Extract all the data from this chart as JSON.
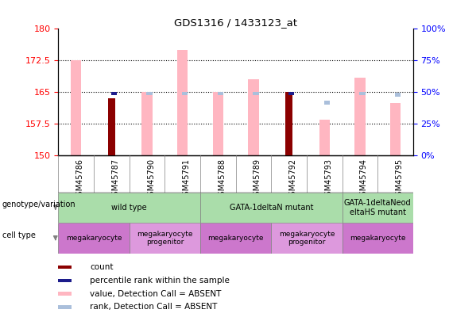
{
  "title": "GDS1316 / 1433123_at",
  "samples": [
    "GSM45786",
    "GSM45787",
    "GSM45790",
    "GSM45791",
    "GSM45788",
    "GSM45789",
    "GSM45792",
    "GSM45793",
    "GSM45794",
    "GSM45795"
  ],
  "ylim_left": [
    150,
    180
  ],
  "ylim_right": [
    0,
    100
  ],
  "yticks_left": [
    150,
    157.5,
    165,
    172.5,
    180
  ],
  "yticks_right": [
    0,
    25,
    50,
    75,
    100
  ],
  "value_absent": [
    172.5,
    null,
    165.0,
    175.0,
    165.0,
    168.0,
    null,
    158.5,
    168.5,
    162.5
  ],
  "rank_absent_pct": [
    null,
    null,
    49,
    49,
    49,
    49,
    null,
    42,
    49,
    48
  ],
  "count_value": [
    null,
    163.5,
    null,
    null,
    null,
    null,
    165.0,
    null,
    null,
    null
  ],
  "percentile_pct": [
    null,
    49,
    null,
    null,
    null,
    null,
    49,
    null,
    null,
    null
  ],
  "color_count": "#8B0000",
  "color_percentile": "#1C1C8B",
  "color_value_absent": "#FFB6C1",
  "color_rank_absent": "#AABFDB",
  "genotype_groups": [
    {
      "label": "wild type",
      "start": 0,
      "end": 4,
      "color": "#AADDAA"
    },
    {
      "label": "GATA-1deltaN mutant",
      "start": 4,
      "end": 8,
      "color": "#AADDAA"
    },
    {
      "label": "GATA-1deltaNeod\neltaHS mutant",
      "start": 8,
      "end": 10,
      "color": "#AADDAA"
    }
  ],
  "cell_type_groups": [
    {
      "label": "megakaryocyte",
      "start": 0,
      "end": 2,
      "color": "#CC77CC"
    },
    {
      "label": "megakaryocyte\nprogenitor",
      "start": 2,
      "end": 4,
      "color": "#DD99DD"
    },
    {
      "label": "megakaryocyte",
      "start": 4,
      "end": 6,
      "color": "#CC77CC"
    },
    {
      "label": "megakaryocyte\nprogenitor",
      "start": 6,
      "end": 8,
      "color": "#DD99DD"
    },
    {
      "label": "megakaryocyte",
      "start": 8,
      "end": 10,
      "color": "#CC77CC"
    }
  ]
}
